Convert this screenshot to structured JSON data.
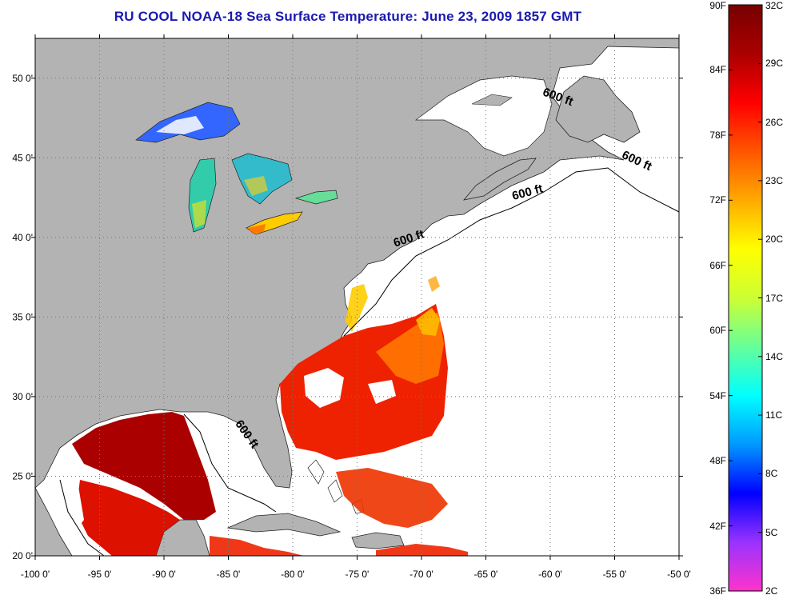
{
  "title": "RU COOL  NOAA-18  Sea Surface Temperature:  June 23, 2009 1857 GMT",
  "map": {
    "lon_range": [
      -100,
      -50
    ],
    "lat_range": [
      20,
      52.5
    ],
    "lon_ticks": [
      {
        "value": -100,
        "label": "-100 0'"
      },
      {
        "value": -95,
        "label": "-95 0'"
      },
      {
        "value": -90,
        "label": "-90 0'"
      },
      {
        "value": -85,
        "label": "-85 0'"
      },
      {
        "value": -80,
        "label": "-80 0'"
      },
      {
        "value": -75,
        "label": "-75 0'"
      },
      {
        "value": -70,
        "label": "-70 0'"
      },
      {
        "value": -65,
        "label": "-65 0'"
      },
      {
        "value": -60,
        "label": "-60 0'"
      },
      {
        "value": -55,
        "label": "-55 0'"
      },
      {
        "value": -50,
        "label": "-50 0'"
      }
    ],
    "lat_ticks": [
      {
        "value": 20,
        "label": "20 0'"
      },
      {
        "value": 25,
        "label": "25 0'"
      },
      {
        "value": 30,
        "label": "30 0'"
      },
      {
        "value": 35,
        "label": "35 0'"
      },
      {
        "value": 40,
        "label": "40 0'"
      },
      {
        "value": 45,
        "label": "45 0'"
      },
      {
        "value": 50,
        "label": "50 0'"
      }
    ],
    "grid": "dotted",
    "land_color": "#b3b3b3",
    "ocean_color": "#ffffff",
    "depth_contour_labels": [
      {
        "text": "600 ft",
        "lon": -59.5,
        "lat": 48.6
      },
      {
        "text": "600 ft",
        "lon": -53.4,
        "lat": 44.6
      },
      {
        "text": "600 ft",
        "lon": -61.7,
        "lat": 42.6
      },
      {
        "text": "600 ft",
        "lon": -70.9,
        "lat": 39.7
      },
      {
        "text": "600 ft",
        "lon": -83.8,
        "lat": 27.5
      }
    ]
  },
  "colorbar": {
    "colors": [
      "#ff33cc",
      "#9933ff",
      "#0000ff",
      "#0099ff",
      "#00ffff",
      "#66ff99",
      "#ccff33",
      "#ffff00",
      "#ffaa00",
      "#ff5500",
      "#ff0000",
      "#aa0000",
      "#770000"
    ],
    "fahrenheit_labels": [
      "90F",
      "84F",
      "78F",
      "72F",
      "66F",
      "60F",
      "54F",
      "48F",
      "42F",
      "36F"
    ],
    "celsius_labels": [
      "32C",
      "29C",
      "26C",
      "23C",
      "20C",
      "17C",
      "14C",
      "11C",
      "8C",
      "5C",
      "2C"
    ]
  }
}
